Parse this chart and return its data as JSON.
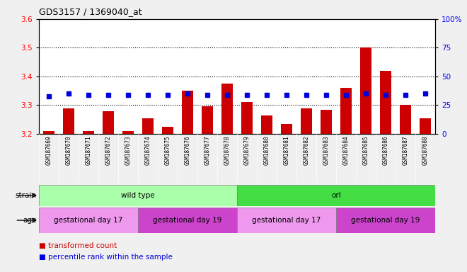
{
  "title": "GDS3157 / 1369040_at",
  "samples": [
    "GSM187669",
    "GSM187670",
    "GSM187671",
    "GSM187672",
    "GSM187673",
    "GSM187674",
    "GSM187675",
    "GSM187676",
    "GSM187677",
    "GSM187678",
    "GSM187679",
    "GSM187680",
    "GSM187681",
    "GSM187682",
    "GSM187683",
    "GSM187684",
    "GSM187685",
    "GSM187686",
    "GSM187687",
    "GSM187688"
  ],
  "transformed_count": [
    3.21,
    3.29,
    3.21,
    3.28,
    3.21,
    3.255,
    3.225,
    3.35,
    3.295,
    3.375,
    3.31,
    3.265,
    3.235,
    3.29,
    3.285,
    3.36,
    3.5,
    3.42,
    3.3,
    3.255
  ],
  "percentile_rank": [
    33,
    35,
    34,
    34,
    34,
    34,
    34,
    35,
    34,
    34,
    34,
    34,
    34,
    34,
    34,
    34,
    35,
    34,
    34,
    35
  ],
  "ylim_left": [
    3.2,
    3.6
  ],
  "ylim_right": [
    0,
    100
  ],
  "yticks_left": [
    3.2,
    3.3,
    3.4,
    3.5,
    3.6
  ],
  "yticks_right": [
    0,
    25,
    50,
    75,
    100
  ],
  "ytick_labels_right": [
    "0",
    "25",
    "50",
    "75",
    "100%"
  ],
  "grid_lines": [
    3.3,
    3.4,
    3.5
  ],
  "bar_color": "#cc0000",
  "dot_color": "#0000dd",
  "fig_bg_color": "#f0f0f0",
  "plot_bg_color": "#ffffff",
  "xlabels_bg_color": "#cccccc",
  "strain_colors": [
    "#aaffaa",
    "#44dd44"
  ],
  "age_colors": [
    "#ee99ee",
    "#cc44cc"
  ],
  "strain_groups": [
    {
      "label": "wild type",
      "start": 0,
      "end": 9
    },
    {
      "label": "orl",
      "start": 10,
      "end": 19
    }
  ],
  "age_groups": [
    {
      "label": "gestational day 17",
      "start": 0,
      "end": 4
    },
    {
      "label": "gestational day 19",
      "start": 5,
      "end": 9
    },
    {
      "label": "gestational day 17",
      "start": 10,
      "end": 14
    },
    {
      "label": "gestational day 19",
      "start": 15,
      "end": 19
    }
  ]
}
